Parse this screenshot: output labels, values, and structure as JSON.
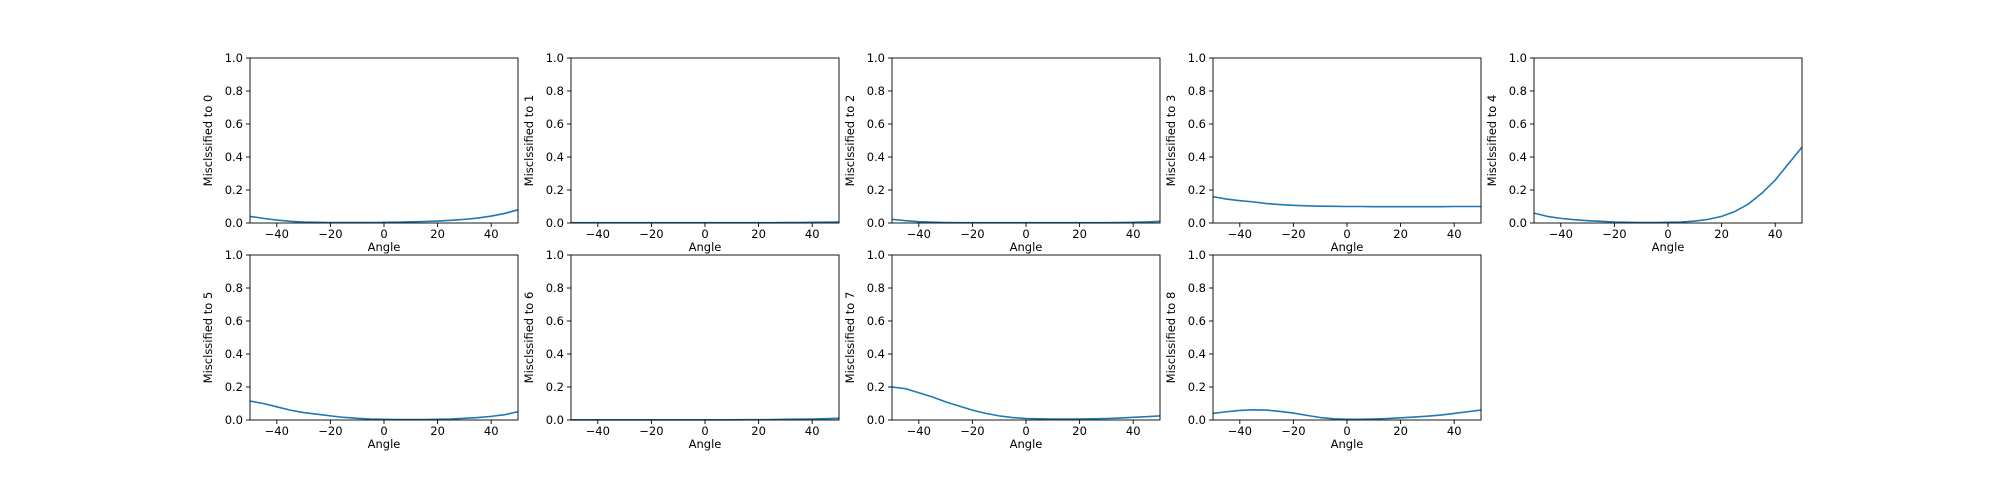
{
  "chart_data": [
    {
      "type": "line",
      "xlabel": "Angle",
      "ylabel": "Misclssified to 0",
      "xlim": [
        -50,
        50
      ],
      "ylim": [
        0,
        1
      ],
      "xticks": [
        -40,
        -20,
        0,
        20,
        40
      ],
      "yticks": [
        0.0,
        0.2,
        0.4,
        0.6,
        0.8,
        1.0
      ],
      "x": [
        -50,
        -45,
        -40,
        -35,
        -30,
        -25,
        -20,
        -15,
        -10,
        -5,
        0,
        5,
        10,
        15,
        20,
        25,
        30,
        35,
        40,
        45,
        50
      ],
      "values": [
        0.04,
        0.028,
        0.018,
        0.01,
        0.006,
        0.004,
        0.003,
        0.003,
        0.003,
        0.003,
        0.004,
        0.005,
        0.007,
        0.009,
        0.012,
        0.016,
        0.022,
        0.03,
        0.042,
        0.058,
        0.08
      ],
      "color": "#1f77b4"
    },
    {
      "type": "line",
      "xlabel": "Angle",
      "ylabel": "Misclssified to 1",
      "xlim": [
        -50,
        50
      ],
      "ylim": [
        0,
        1
      ],
      "xticks": [
        -40,
        -20,
        0,
        20,
        40
      ],
      "yticks": [
        0.0,
        0.2,
        0.4,
        0.6,
        0.8,
        1.0
      ],
      "x": [
        -50,
        -45,
        -40,
        -35,
        -30,
        -25,
        -20,
        -15,
        -10,
        -5,
        0,
        5,
        10,
        15,
        20,
        25,
        30,
        35,
        40,
        45,
        50
      ],
      "values": [
        0.002,
        0.002,
        0.002,
        0.002,
        0.002,
        0.002,
        0.002,
        0.002,
        0.002,
        0.002,
        0.002,
        0.002,
        0.002,
        0.002,
        0.002,
        0.002,
        0.003,
        0.003,
        0.004,
        0.005,
        0.006
      ],
      "color": "#1f77b4"
    },
    {
      "type": "line",
      "xlabel": "Angle",
      "ylabel": "Misclssified to 2",
      "xlim": [
        -50,
        50
      ],
      "ylim": [
        0,
        1
      ],
      "xticks": [
        -40,
        -20,
        0,
        20,
        40
      ],
      "yticks": [
        0.0,
        0.2,
        0.4,
        0.6,
        0.8,
        1.0
      ],
      "x": [
        -50,
        -45,
        -40,
        -35,
        -30,
        -25,
        -20,
        -15,
        -10,
        -5,
        0,
        5,
        10,
        15,
        20,
        25,
        30,
        35,
        40,
        45,
        50
      ],
      "values": [
        0.022,
        0.014,
        0.008,
        0.005,
        0.003,
        0.002,
        0.002,
        0.002,
        0.002,
        0.002,
        0.002,
        0.002,
        0.002,
        0.002,
        0.002,
        0.002,
        0.002,
        0.003,
        0.004,
        0.006,
        0.01
      ],
      "color": "#1f77b4"
    },
    {
      "type": "line",
      "xlabel": "Angle",
      "ylabel": "Misclssified to 3",
      "xlim": [
        -50,
        50
      ],
      "ylim": [
        0,
        1
      ],
      "xticks": [
        -40,
        -20,
        0,
        20,
        40
      ],
      "yticks": [
        0.0,
        0.2,
        0.4,
        0.6,
        0.8,
        1.0
      ],
      "x": [
        -50,
        -45,
        -40,
        -35,
        -30,
        -25,
        -20,
        -15,
        -10,
        -5,
        0,
        5,
        10,
        15,
        20,
        25,
        30,
        35,
        40,
        45,
        50
      ],
      "values": [
        0.16,
        0.145,
        0.135,
        0.128,
        0.118,
        0.112,
        0.107,
        0.104,
        0.102,
        0.101,
        0.1,
        0.1,
        0.099,
        0.099,
        0.099,
        0.099,
        0.099,
        0.099,
        0.1,
        0.1,
        0.1
      ],
      "color": "#1f77b4"
    },
    {
      "type": "line",
      "xlabel": "Angle",
      "ylabel": "Misclssified to 4",
      "xlim": [
        -50,
        50
      ],
      "ylim": [
        0,
        1
      ],
      "xticks": [
        -40,
        -20,
        0,
        20,
        40
      ],
      "yticks": [
        0.0,
        0.2,
        0.4,
        0.6,
        0.8,
        1.0
      ],
      "x": [
        -50,
        -45,
        -40,
        -35,
        -30,
        -25,
        -20,
        -15,
        -10,
        -5,
        0,
        5,
        10,
        15,
        20,
        25,
        30,
        35,
        40,
        45,
        50
      ],
      "values": [
        0.06,
        0.04,
        0.028,
        0.02,
        0.014,
        0.01,
        0.006,
        0.004,
        0.003,
        0.003,
        0.004,
        0.006,
        0.012,
        0.022,
        0.04,
        0.07,
        0.115,
        0.18,
        0.26,
        0.36,
        0.46
      ],
      "color": "#1f77b4"
    },
    {
      "type": "line",
      "xlabel": "Angle",
      "ylabel": "Misclssified to 5",
      "xlim": [
        -50,
        50
      ],
      "ylim": [
        0,
        1
      ],
      "xticks": [
        -40,
        -20,
        0,
        20,
        40
      ],
      "yticks": [
        0.0,
        0.2,
        0.4,
        0.6,
        0.8,
        1.0
      ],
      "x": [
        -50,
        -45,
        -40,
        -35,
        -30,
        -25,
        -20,
        -15,
        -10,
        -5,
        0,
        5,
        10,
        15,
        20,
        25,
        30,
        35,
        40,
        45,
        50
      ],
      "values": [
        0.115,
        0.1,
        0.08,
        0.06,
        0.045,
        0.035,
        0.025,
        0.016,
        0.01,
        0.006,
        0.004,
        0.003,
        0.003,
        0.003,
        0.004,
        0.006,
        0.01,
        0.015,
        0.022,
        0.032,
        0.05
      ],
      "color": "#1f77b4"
    },
    {
      "type": "line",
      "xlabel": "Angle",
      "ylabel": "Misclssified to 6",
      "xlim": [
        -50,
        50
      ],
      "ylim": [
        0,
        1
      ],
      "xticks": [
        -40,
        -20,
        0,
        20,
        40
      ],
      "yticks": [
        0.0,
        0.2,
        0.4,
        0.6,
        0.8,
        1.0
      ],
      "x": [
        -50,
        -45,
        -40,
        -35,
        -30,
        -25,
        -20,
        -15,
        -10,
        -5,
        0,
        5,
        10,
        15,
        20,
        25,
        30,
        35,
        40,
        45,
        50
      ],
      "values": [
        0.001,
        0.001,
        0.001,
        0.001,
        0.001,
        0.001,
        0.001,
        0.001,
        0.001,
        0.001,
        0.001,
        0.001,
        0.001,
        0.002,
        0.002,
        0.003,
        0.004,
        0.005,
        0.006,
        0.008,
        0.01
      ],
      "color": "#1f77b4"
    },
    {
      "type": "line",
      "xlabel": "Angle",
      "ylabel": "Misclssified to 7",
      "xlim": [
        -50,
        50
      ],
      "ylim": [
        0,
        1
      ],
      "xticks": [
        -40,
        -20,
        0,
        20,
        40
      ],
      "yticks": [
        0.0,
        0.2,
        0.4,
        0.6,
        0.8,
        1.0
      ],
      "x": [
        -50,
        -45,
        -40,
        -35,
        -30,
        -25,
        -20,
        -15,
        -10,
        -5,
        0,
        5,
        10,
        15,
        20,
        25,
        30,
        35,
        40,
        45,
        50
      ],
      "values": [
        0.2,
        0.19,
        0.165,
        0.14,
        0.11,
        0.085,
        0.06,
        0.04,
        0.025,
        0.015,
        0.009,
        0.007,
        0.006,
        0.006,
        0.006,
        0.007,
        0.009,
        0.012,
        0.016,
        0.02,
        0.025
      ],
      "color": "#1f77b4"
    },
    {
      "type": "line",
      "xlabel": "Angle",
      "ylabel": "Misclssified to 8",
      "xlim": [
        -50,
        50
      ],
      "ylim": [
        0,
        1
      ],
      "xticks": [
        -40,
        -20,
        0,
        20,
        40
      ],
      "yticks": [
        0.0,
        0.2,
        0.4,
        0.6,
        0.8,
        1.0
      ],
      "x": [
        -50,
        -45,
        -40,
        -35,
        -30,
        -25,
        -20,
        -15,
        -10,
        -5,
        0,
        5,
        10,
        15,
        20,
        25,
        30,
        35,
        40,
        45,
        50
      ],
      "values": [
        0.04,
        0.05,
        0.058,
        0.062,
        0.06,
        0.052,
        0.042,
        0.028,
        0.015,
        0.007,
        0.004,
        0.004,
        0.006,
        0.009,
        0.013,
        0.018,
        0.023,
        0.03,
        0.04,
        0.05,
        0.06
      ],
      "color": "#1f77b4"
    }
  ]
}
